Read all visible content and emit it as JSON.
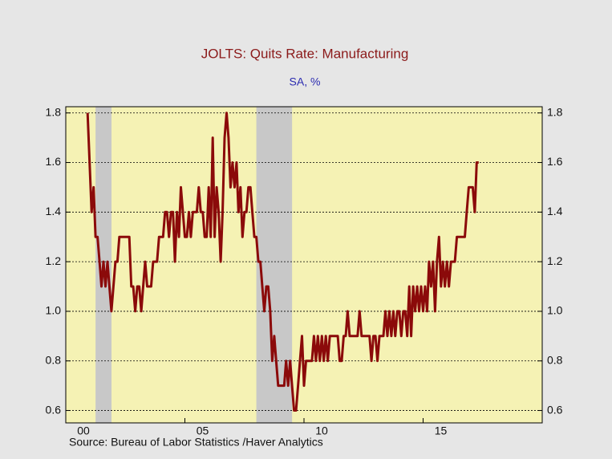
{
  "chart_data": {
    "type": "line",
    "title": "JOLTS: Quits Rate: Manufacturing",
    "subtitle": "SA, %",
    "source": "Source:   Bureau of Labor Statistics /Haver Analytics",
    "xlim": [
      2000,
      2020
    ],
    "xticks": [
      {
        "value": 2000,
        "label": "00"
      },
      {
        "value": 2005,
        "label": "05"
      },
      {
        "value": 2010,
        "label": "10"
      },
      {
        "value": 2015,
        "label": "15"
      }
    ],
    "ylim": [
      0.55,
      1.825
    ],
    "yticks": [
      0.6,
      0.8,
      {
        "value": 1,
        "label": "1.0"
      },
      1.2,
      1.4,
      1.6,
      1.8
    ],
    "grid": true,
    "shaded_periods": [
      [
        2001.25,
        2001.92
      ],
      [
        2008.0,
        2009.5
      ]
    ],
    "shade_color": "#c8c8c8",
    "background": "#f5f2b4",
    "x": [
      2000.917,
      2001.0,
      2001.083,
      2001.167,
      2001.25,
      2001.333,
      2001.417,
      2001.5,
      2001.583,
      2001.667,
      2001.75,
      2001.833,
      2001.917,
      2002.0,
      2002.083,
      2002.167,
      2002.25,
      2002.333,
      2002.417,
      2002.5,
      2002.583,
      2002.667,
      2002.75,
      2002.833,
      2002.917,
      2003.0,
      2003.083,
      2003.167,
      2003.25,
      2003.333,
      2003.417,
      2003.5,
      2003.583,
      2003.667,
      2003.75,
      2003.833,
      2003.917,
      2004.0,
      2004.083,
      2004.167,
      2004.25,
      2004.333,
      2004.417,
      2004.5,
      2004.583,
      2004.667,
      2004.75,
      2004.833,
      2004.917,
      2005.0,
      2005.083,
      2005.167,
      2005.25,
      2005.333,
      2005.417,
      2005.5,
      2005.583,
      2005.667,
      2005.75,
      2005.833,
      2005.917,
      2006.0,
      2006.083,
      2006.167,
      2006.25,
      2006.333,
      2006.417,
      2006.5,
      2006.583,
      2006.667,
      2006.75,
      2006.833,
      2006.917,
      2007.0,
      2007.083,
      2007.167,
      2007.25,
      2007.333,
      2007.417,
      2007.5,
      2007.583,
      2007.667,
      2007.75,
      2007.833,
      2007.917,
      2008.0,
      2008.083,
      2008.167,
      2008.25,
      2008.333,
      2008.417,
      2008.5,
      2008.583,
      2008.667,
      2008.75,
      2008.833,
      2008.917,
      2009.0,
      2009.083,
      2009.167,
      2009.25,
      2009.333,
      2009.417,
      2009.5,
      2009.583,
      2009.667,
      2009.75,
      2009.833,
      2009.917,
      2010.0,
      2010.083,
      2010.167,
      2010.25,
      2010.333,
      2010.417,
      2010.5,
      2010.583,
      2010.667,
      2010.75,
      2010.833,
      2010.917,
      2011.0,
      2011.083,
      2011.167,
      2011.25,
      2011.333,
      2011.417,
      2011.5,
      2011.583,
      2011.667,
      2011.75,
      2011.833,
      2011.917,
      2012.0,
      2012.083,
      2012.167,
      2012.25,
      2012.333,
      2012.417,
      2012.5,
      2012.583,
      2012.667,
      2012.75,
      2012.833,
      2012.917,
      2013.0,
      2013.083,
      2013.167,
      2013.25,
      2013.333,
      2013.417,
      2013.5,
      2013.583,
      2013.667,
      2013.75,
      2013.833,
      2013.917,
      2014.0,
      2014.083,
      2014.167,
      2014.25,
      2014.333,
      2014.417,
      2014.5,
      2014.583,
      2014.667,
      2014.75,
      2014.833,
      2014.917,
      2015.0,
      2015.083,
      2015.167,
      2015.25,
      2015.333,
      2015.417,
      2015.5,
      2015.583,
      2015.667,
      2015.75,
      2015.833,
      2015.917,
      2016.0,
      2016.083,
      2016.167,
      2016.25,
      2016.333,
      2016.417,
      2016.5,
      2016.583,
      2016.667,
      2016.75,
      2016.833,
      2016.917,
      2017.0,
      2017.083,
      2017.167,
      2017.25,
      2017.333
    ],
    "series": [
      {
        "color": "#8b0a0a",
        "values": [
          1.8,
          1.6,
          1.4,
          1.5,
          1.3,
          1.3,
          1.2,
          1.1,
          1.2,
          1.1,
          1.2,
          1.1,
          1.0,
          1.1,
          1.2,
          1.2,
          1.3,
          1.3,
          1.3,
          1.3,
          1.3,
          1.3,
          1.1,
          1.1,
          1.0,
          1.1,
          1.1,
          1.0,
          1.1,
          1.2,
          1.1,
          1.1,
          1.1,
          1.2,
          1.2,
          1.2,
          1.3,
          1.3,
          1.3,
          1.4,
          1.4,
          1.3,
          1.4,
          1.4,
          1.2,
          1.4,
          1.3,
          1.5,
          1.4,
          1.3,
          1.3,
          1.4,
          1.3,
          1.4,
          1.4,
          1.4,
          1.5,
          1.4,
          1.4,
          1.3,
          1.3,
          1.5,
          1.3,
          1.7,
          1.3,
          1.5,
          1.4,
          1.2,
          1.4,
          1.7,
          1.8,
          1.7,
          1.5,
          1.6,
          1.5,
          1.6,
          1.4,
          1.5,
          1.3,
          1.4,
          1.4,
          1.5,
          1.5,
          1.4,
          1.3,
          1.3,
          1.2,
          1.2,
          1.1,
          1.0,
          1.1,
          1.1,
          1.0,
          0.8,
          0.9,
          0.8,
          0.7,
          0.7,
          0.7,
          0.7,
          0.8,
          0.7,
          0.8,
          0.7,
          0.6,
          0.6,
          0.7,
          0.8,
          0.9,
          0.7,
          0.8,
          0.8,
          0.8,
          0.8,
          0.9,
          0.8,
          0.9,
          0.8,
          0.9,
          0.8,
          0.9,
          0.8,
          0.9,
          0.9,
          0.9,
          0.9,
          0.9,
          0.8,
          0.8,
          0.9,
          0.9,
          1.0,
          0.9,
          0.9,
          0.9,
          0.9,
          0.9,
          1.0,
          0.9,
          0.9,
          0.9,
          0.9,
          0.9,
          0.8,
          0.9,
          0.9,
          0.8,
          0.9,
          0.9,
          0.9,
          1.0,
          0.9,
          1.0,
          0.9,
          1.0,
          0.9,
          1.0,
          1.0,
          0.9,
          1.0,
          1.0,
          0.9,
          1.1,
          0.9,
          1.1,
          1.0,
          1.1,
          1.0,
          1.1,
          1.0,
          1.1,
          1.0,
          1.2,
          1.1,
          1.2,
          1.0,
          1.2,
          1.3,
          1.1,
          1.2,
          1.1,
          1.2,
          1.1,
          1.2,
          1.2,
          1.2,
          1.3,
          1.3,
          1.3,
          1.3,
          1.3,
          1.4,
          1.5,
          1.5,
          1.5,
          1.4,
          1.6,
          1.6
        ]
      }
    ]
  }
}
